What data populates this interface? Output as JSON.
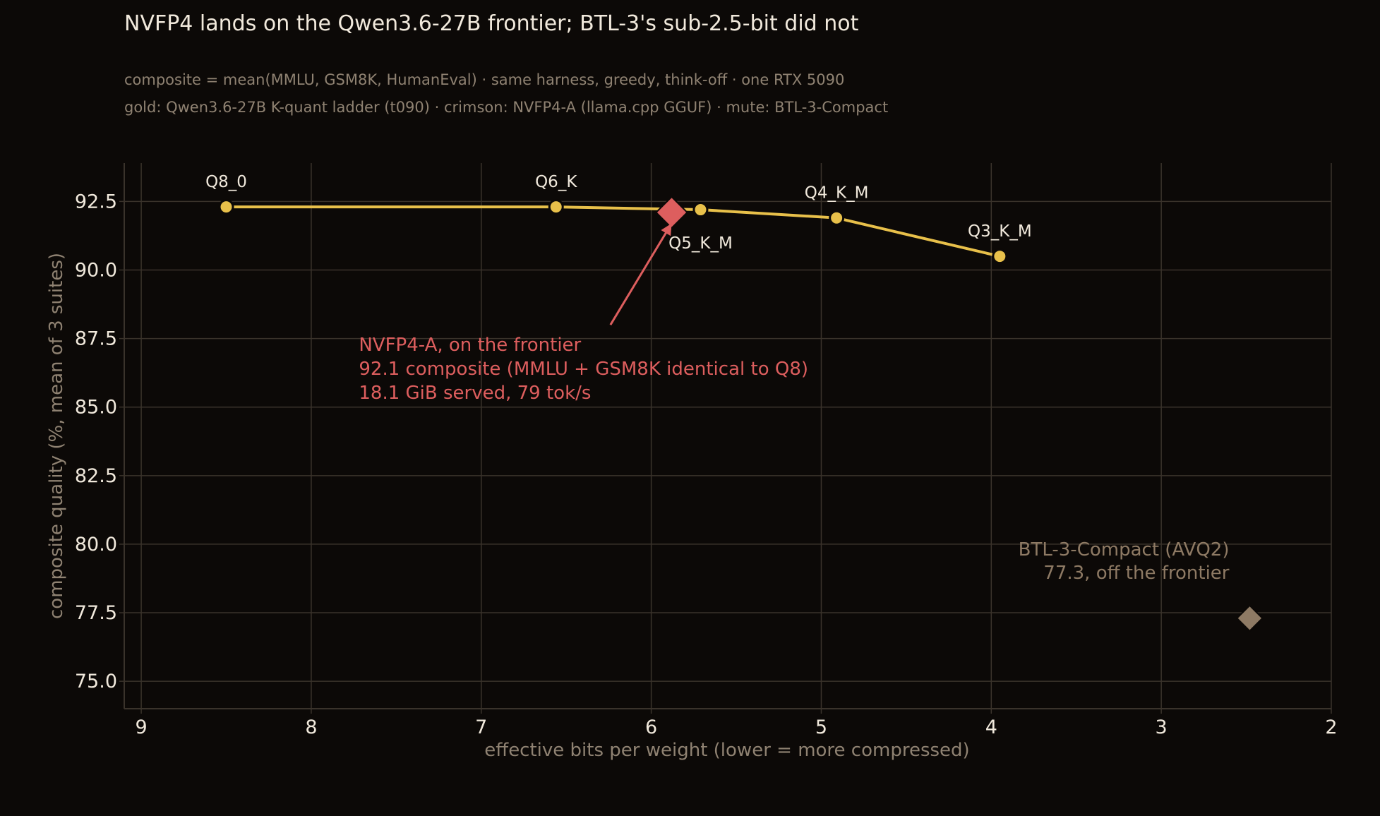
{
  "chart_data": {
    "type": "line",
    "title": "NVFP4 lands on the Qwen3.6-27B frontier; BTL-3's sub-2.5-bit did not",
    "subtitle_lines": [
      "composite = mean(MMLU, GSM8K, HumanEval) · same harness, greedy, think-off · one RTX 5090",
      "gold: Qwen3.6-27B K-quant ladder (t090) · crimson: NVFP4-A (llama.cpp GGUF) · mute: BTL-3-Compact"
    ],
    "xlabel": "effective bits per weight  (lower = more compressed)",
    "ylabel": "composite quality  (%, mean of 3 suites)",
    "xlim": [
      9.1,
      2.0
    ],
    "ylim": [
      74.0,
      93.9
    ],
    "x_reversed": true,
    "xticks": [
      9,
      8,
      7,
      6,
      5,
      4,
      3,
      2
    ],
    "yticks": [
      "75.0",
      "77.5",
      "80.0",
      "82.5",
      "85.0",
      "87.5",
      "90.0",
      "92.5"
    ],
    "grid": true,
    "colors": {
      "gold": "#e8c04a",
      "crimson": "#dd5e5e",
      "mute": "#8e7a64",
      "background": "#0c0907",
      "grid": "#3a332b",
      "text": "#f1e9dc",
      "muted_text": "#8f8272"
    },
    "series": [
      {
        "color_key": "gold",
        "style": "line+markers",
        "points": [
          {
            "label": "Q8_0",
            "x": 8.5,
            "y": 92.3
          },
          {
            "label": "Q6_K",
            "x": 6.56,
            "y": 92.3
          },
          {
            "label": "Q5_K_M",
            "x": 5.71,
            "y": 92.2
          },
          {
            "label": "Q4_K_M",
            "x": 4.91,
            "y": 91.9
          },
          {
            "label": "Q3_K_M",
            "x": 3.95,
            "y": 90.5
          }
        ]
      },
      {
        "color_key": "crimson",
        "style": "diamond",
        "points": [
          {
            "x": 5.88,
            "y": 92.1
          }
        ]
      },
      {
        "color_key": "mute",
        "style": "diamond",
        "points": [
          {
            "x": 2.48,
            "y": 77.3
          }
        ]
      }
    ],
    "annotations": [
      {
        "color_key": "crimson",
        "lines": [
          "NVFP4-A, on the frontier",
          "92.1 composite (MMLU + GSM8K identical to Q8)",
          "18.1 GiB served, 79 tok/s"
        ],
        "text_anchor_data": {
          "x": 7.72,
          "y": 87.4
        },
        "arrow_from": {
          "x": 6.24,
          "y": 88.0
        },
        "arrow_to": {
          "x": 5.88,
          "y": 91.7
        }
      },
      {
        "color_key": "mute",
        "lines": [
          "BTL-3-Compact (AVQ2)",
          "77.3, off the frontier"
        ],
        "text_anchor_data": {
          "x": 2.6,
          "y": 79.9
        },
        "align": "end"
      }
    ]
  }
}
